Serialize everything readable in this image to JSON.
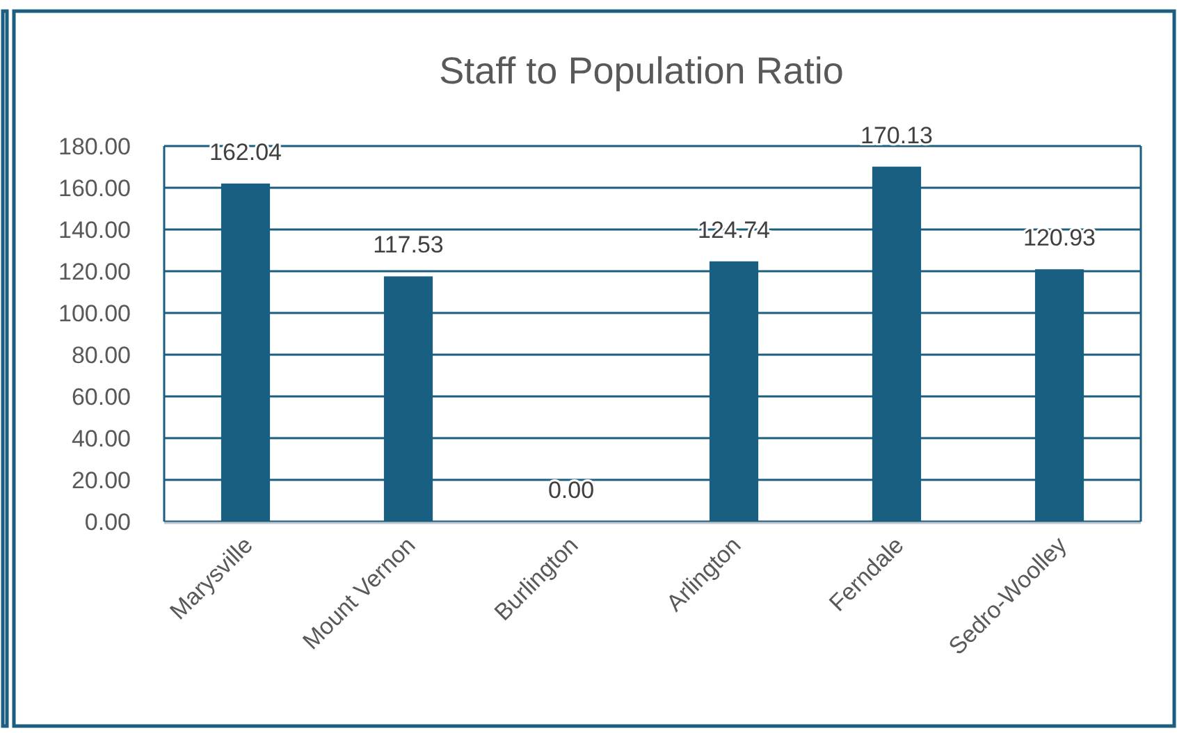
{
  "chart_data": {
    "type": "bar",
    "title": "Staff to Population Ratio",
    "categories": [
      "Marysville",
      "Mount Vernon",
      "Burlington",
      "Arlington",
      "Ferndale",
      "Sedro-Woolley"
    ],
    "values": [
      162.04,
      117.53,
      0.0,
      124.74,
      170.13,
      120.93
    ],
    "color": "#185f82",
    "value_labels": [
      "162.04",
      "117.53",
      "0.00",
      "124.74",
      "170.13",
      "120.93"
    ],
    "ylim": [
      0,
      180
    ],
    "yticks": [
      {
        "value": 0,
        "label": "0.00"
      },
      {
        "value": 20,
        "label": "20.00"
      },
      {
        "value": 40,
        "label": "40.00"
      },
      {
        "value": 60,
        "label": "60.00"
      },
      {
        "value": 80,
        "label": "80.00"
      },
      {
        "value": 100,
        "label": "100.00"
      },
      {
        "value": 120,
        "label": "120.00"
      },
      {
        "value": 140,
        "label": "140.00"
      },
      {
        "value": 160,
        "label": "160.00"
      },
      {
        "value": 180,
        "label": "180.00"
      }
    ],
    "grid": "y"
  }
}
